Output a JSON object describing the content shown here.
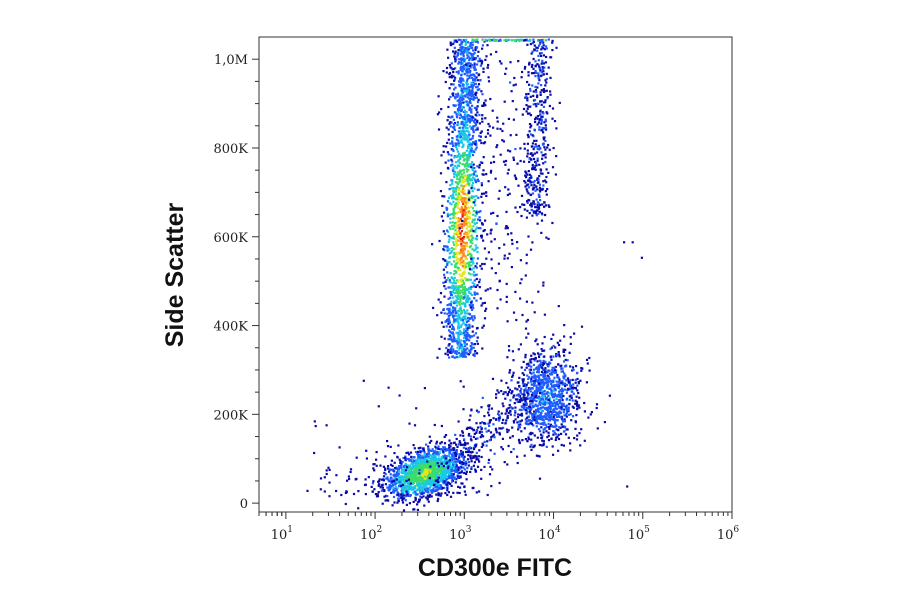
{
  "chart_data": {
    "type": "scatter",
    "xlabel": "CD300e FITC",
    "ylabel": "Side Scatter",
    "xscale": "log",
    "xlim": [
      5,
      1000000
    ],
    "ylim": [
      -20000,
      1050000
    ],
    "xticks": [
      {
        "value": 10,
        "base": "10",
        "exp": "1"
      },
      {
        "value": 100,
        "base": "10",
        "exp": "2"
      },
      {
        "value": 1000,
        "base": "10",
        "exp": "3"
      },
      {
        "value": 10000,
        "base": "10",
        "exp": "4"
      },
      {
        "value": 100000,
        "base": "10",
        "exp": "5"
      },
      {
        "value": 1000000,
        "base": "10",
        "exp": "6"
      }
    ],
    "yticks": [
      {
        "value": 0,
        "label": "0"
      },
      {
        "value": 200000,
        "label": "200K"
      },
      {
        "value": 400000,
        "label": "400K"
      },
      {
        "value": 600000,
        "label": "600K"
      },
      {
        "value": 800000,
        "label": "800K"
      },
      {
        "value": 1000000,
        "label": "1,0M"
      }
    ],
    "grid": false,
    "legend": "none",
    "density_colormap": [
      "#0a0aa8",
      "#1e5cff",
      "#19c8e6",
      "#3ddc6a",
      "#e6e620",
      "#ff8a1a",
      "#e62010"
    ],
    "populations": [
      {
        "x_center": 350,
        "y_center": 70000,
        "x_spread_decades": 0.22,
        "y_spread": 25000,
        "relative_density": 0.9
      },
      {
        "x_center": 950,
        "y_center": 600000,
        "x_spread_decades": 0.1,
        "y_range": [
          330000,
          1050000
        ],
        "relative_density": 1.0
      },
      {
        "x_center": 8000,
        "y_center": 240000,
        "x_spread_decades": 0.2,
        "y_spread": 55000,
        "relative_density": 0.45
      },
      {
        "x_center": 6500,
        "y_center": 850000,
        "x_spread_decades": 0.08,
        "y_range": [
          650000,
          1050000
        ],
        "relative_density": 0.25
      }
    ]
  }
}
